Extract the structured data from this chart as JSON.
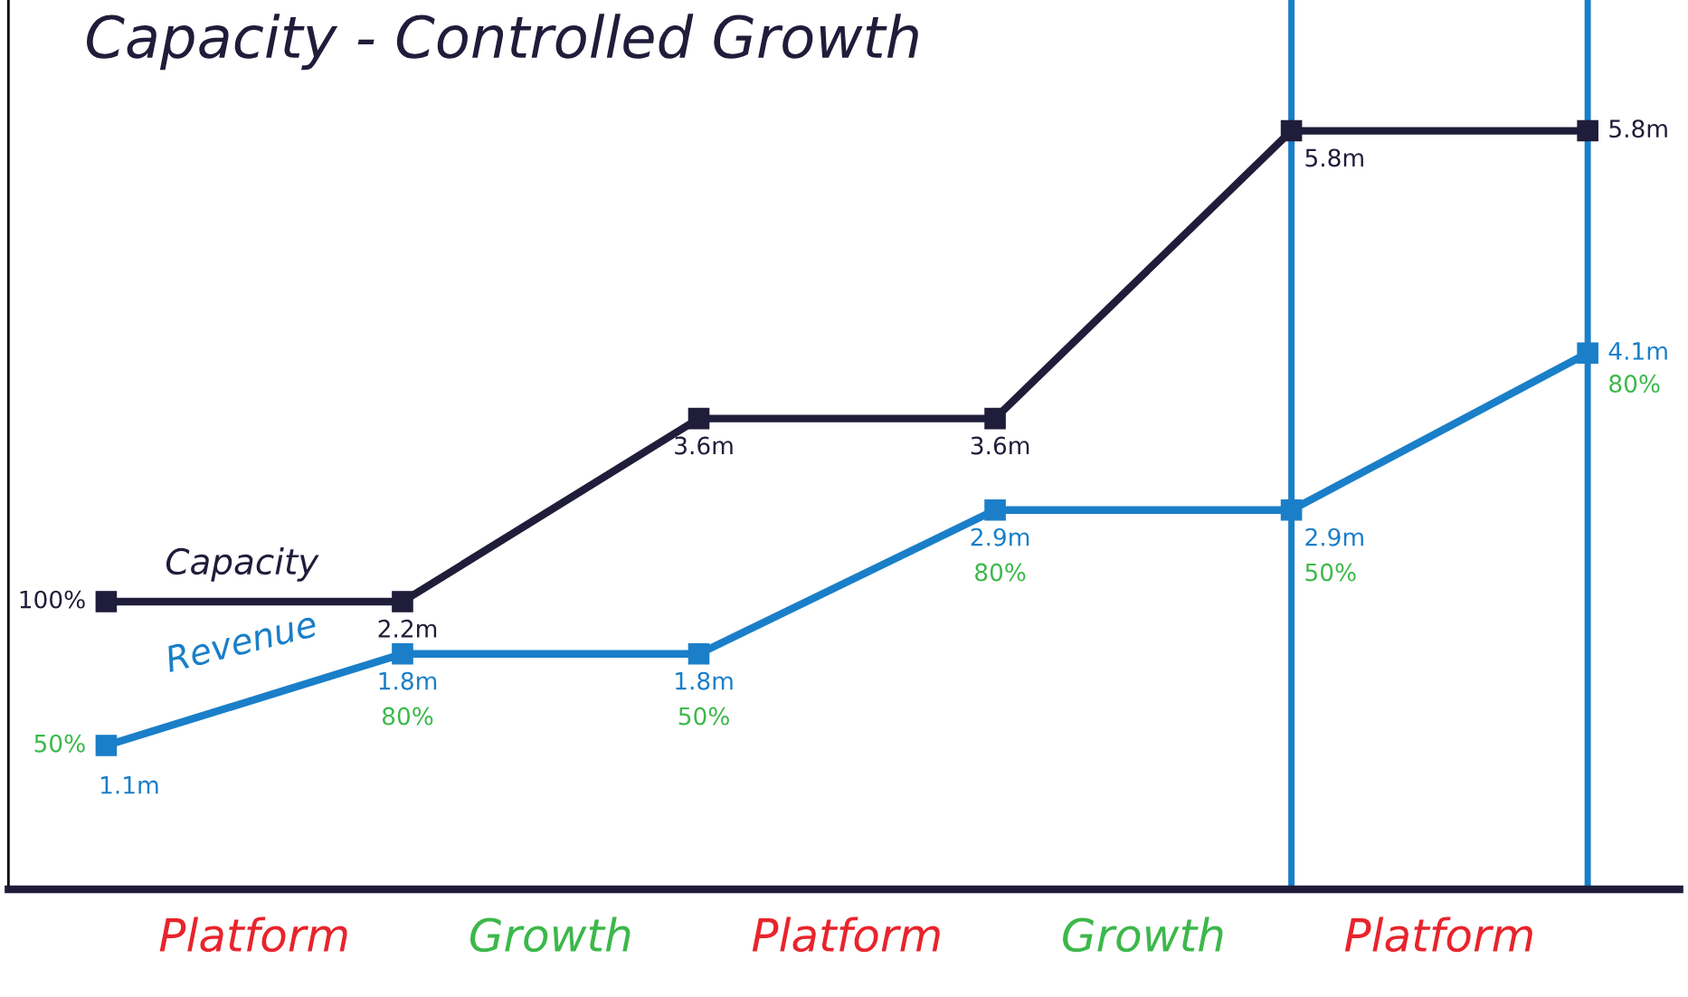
{
  "chart_data": {
    "type": "line",
    "title": "Capacity - Controlled Growth",
    "categories": [
      null,
      null,
      null,
      null,
      null,
      null
    ],
    "series": [
      {
        "name": "Capacity",
        "color": "#1f1d3a",
        "values": [
          2.2,
          2.2,
          3.6,
          3.6,
          5.8,
          5.8
        ],
        "value_labels": [
          null,
          "2.2m",
          "3.6m",
          "3.6m",
          "5.8m",
          "5.8m"
        ]
      },
      {
        "name": "Revenue",
        "color": "#1a7fc8",
        "values": [
          1.1,
          1.8,
          1.8,
          2.9,
          2.9,
          4.1
        ],
        "value_labels": [
          "1.1m",
          "1.8m",
          "1.8m",
          "2.9m",
          "2.9m",
          "4.1m"
        ]
      }
    ],
    "annotations": [
      "100%",
      "50%",
      "80%",
      "50%",
      "80%",
      "50%",
      "80%",
      "Platform",
      "Growth",
      "Platform",
      "Growth",
      "Platform"
    ],
    "ylim": [
      0,
      6.8
    ],
    "marker": "square",
    "line_style": "solid",
    "grid": false,
    "legend": false
  }
}
